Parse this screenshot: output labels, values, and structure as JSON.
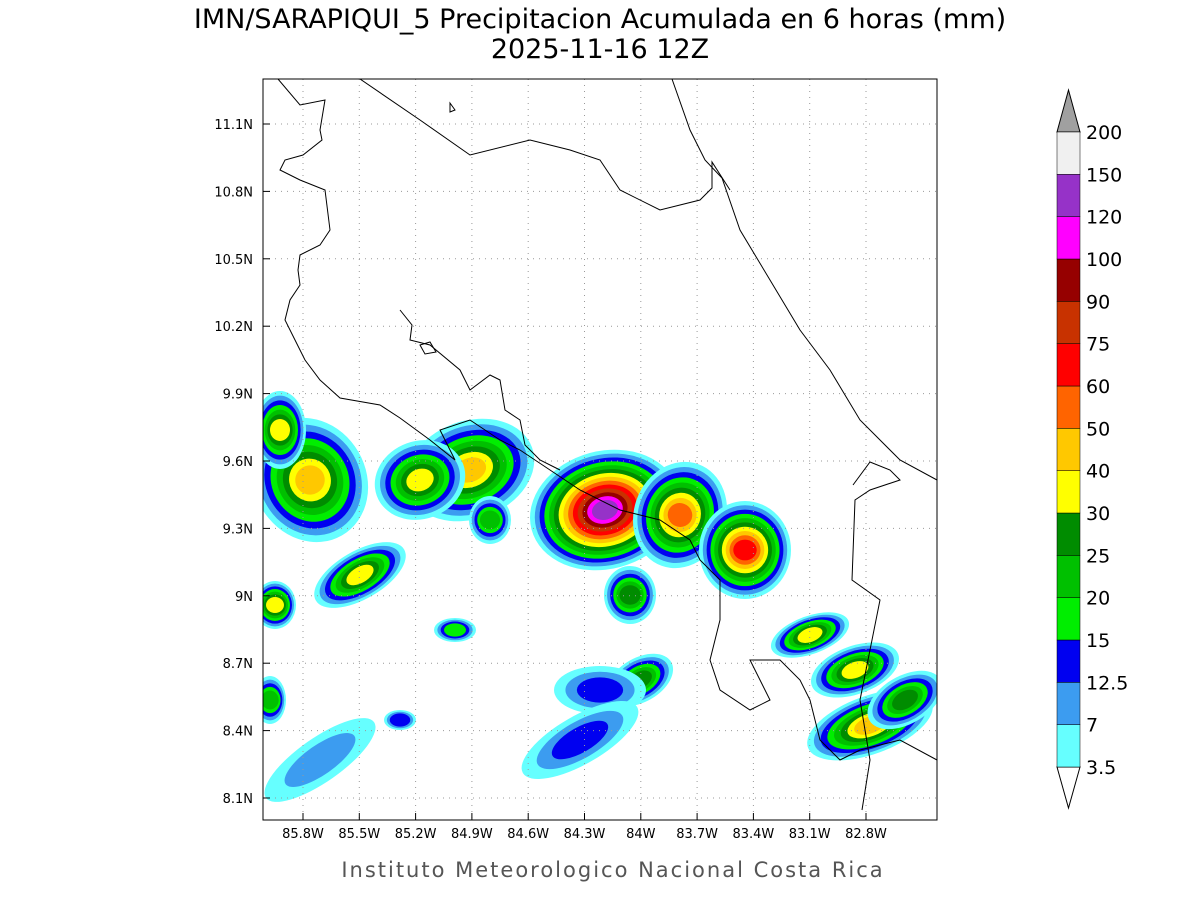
{
  "header": {
    "title": "IMN/SARAPIQUI_5 Precipitacion Acumulada en 6 horas (mm)",
    "subtitle": "2025-11-16 12Z"
  },
  "map": {
    "lat_labels": [
      "11.1N",
      "10.8N",
      "10.5N",
      "10.2N",
      "9.9N",
      "9.6N",
      "9.3N",
      "9N",
      "8.7N",
      "8.4N",
      "8.1N"
    ],
    "lon_labels": [
      "85.8W",
      "85.5W",
      "85.2W",
      "84.9W",
      "84.6W",
      "84.3W",
      "84W",
      "83.7W",
      "83.4W",
      "83.1W",
      "82.8W"
    ]
  },
  "colorbar": {
    "levels": [
      3.5,
      7,
      12.5,
      15,
      20,
      25,
      30,
      40,
      50,
      60,
      75,
      90,
      100,
      120,
      150,
      200
    ],
    "colors": [
      "#ffffff",
      "#66ffff",
      "#3c9cf0",
      "#0000f0",
      "#00ee00",
      "#00c000",
      "#008c00",
      "#ffff00",
      "#ffc800",
      "#ff6400",
      "#ff0000",
      "#c83200",
      "#960000",
      "#ff00ff",
      "#9632c8",
      "#f0f0f0",
      "#a0a0a0"
    ]
  },
  "footer": {
    "credit": "Instituto Meteorologico Nacional Costa Rica"
  }
}
